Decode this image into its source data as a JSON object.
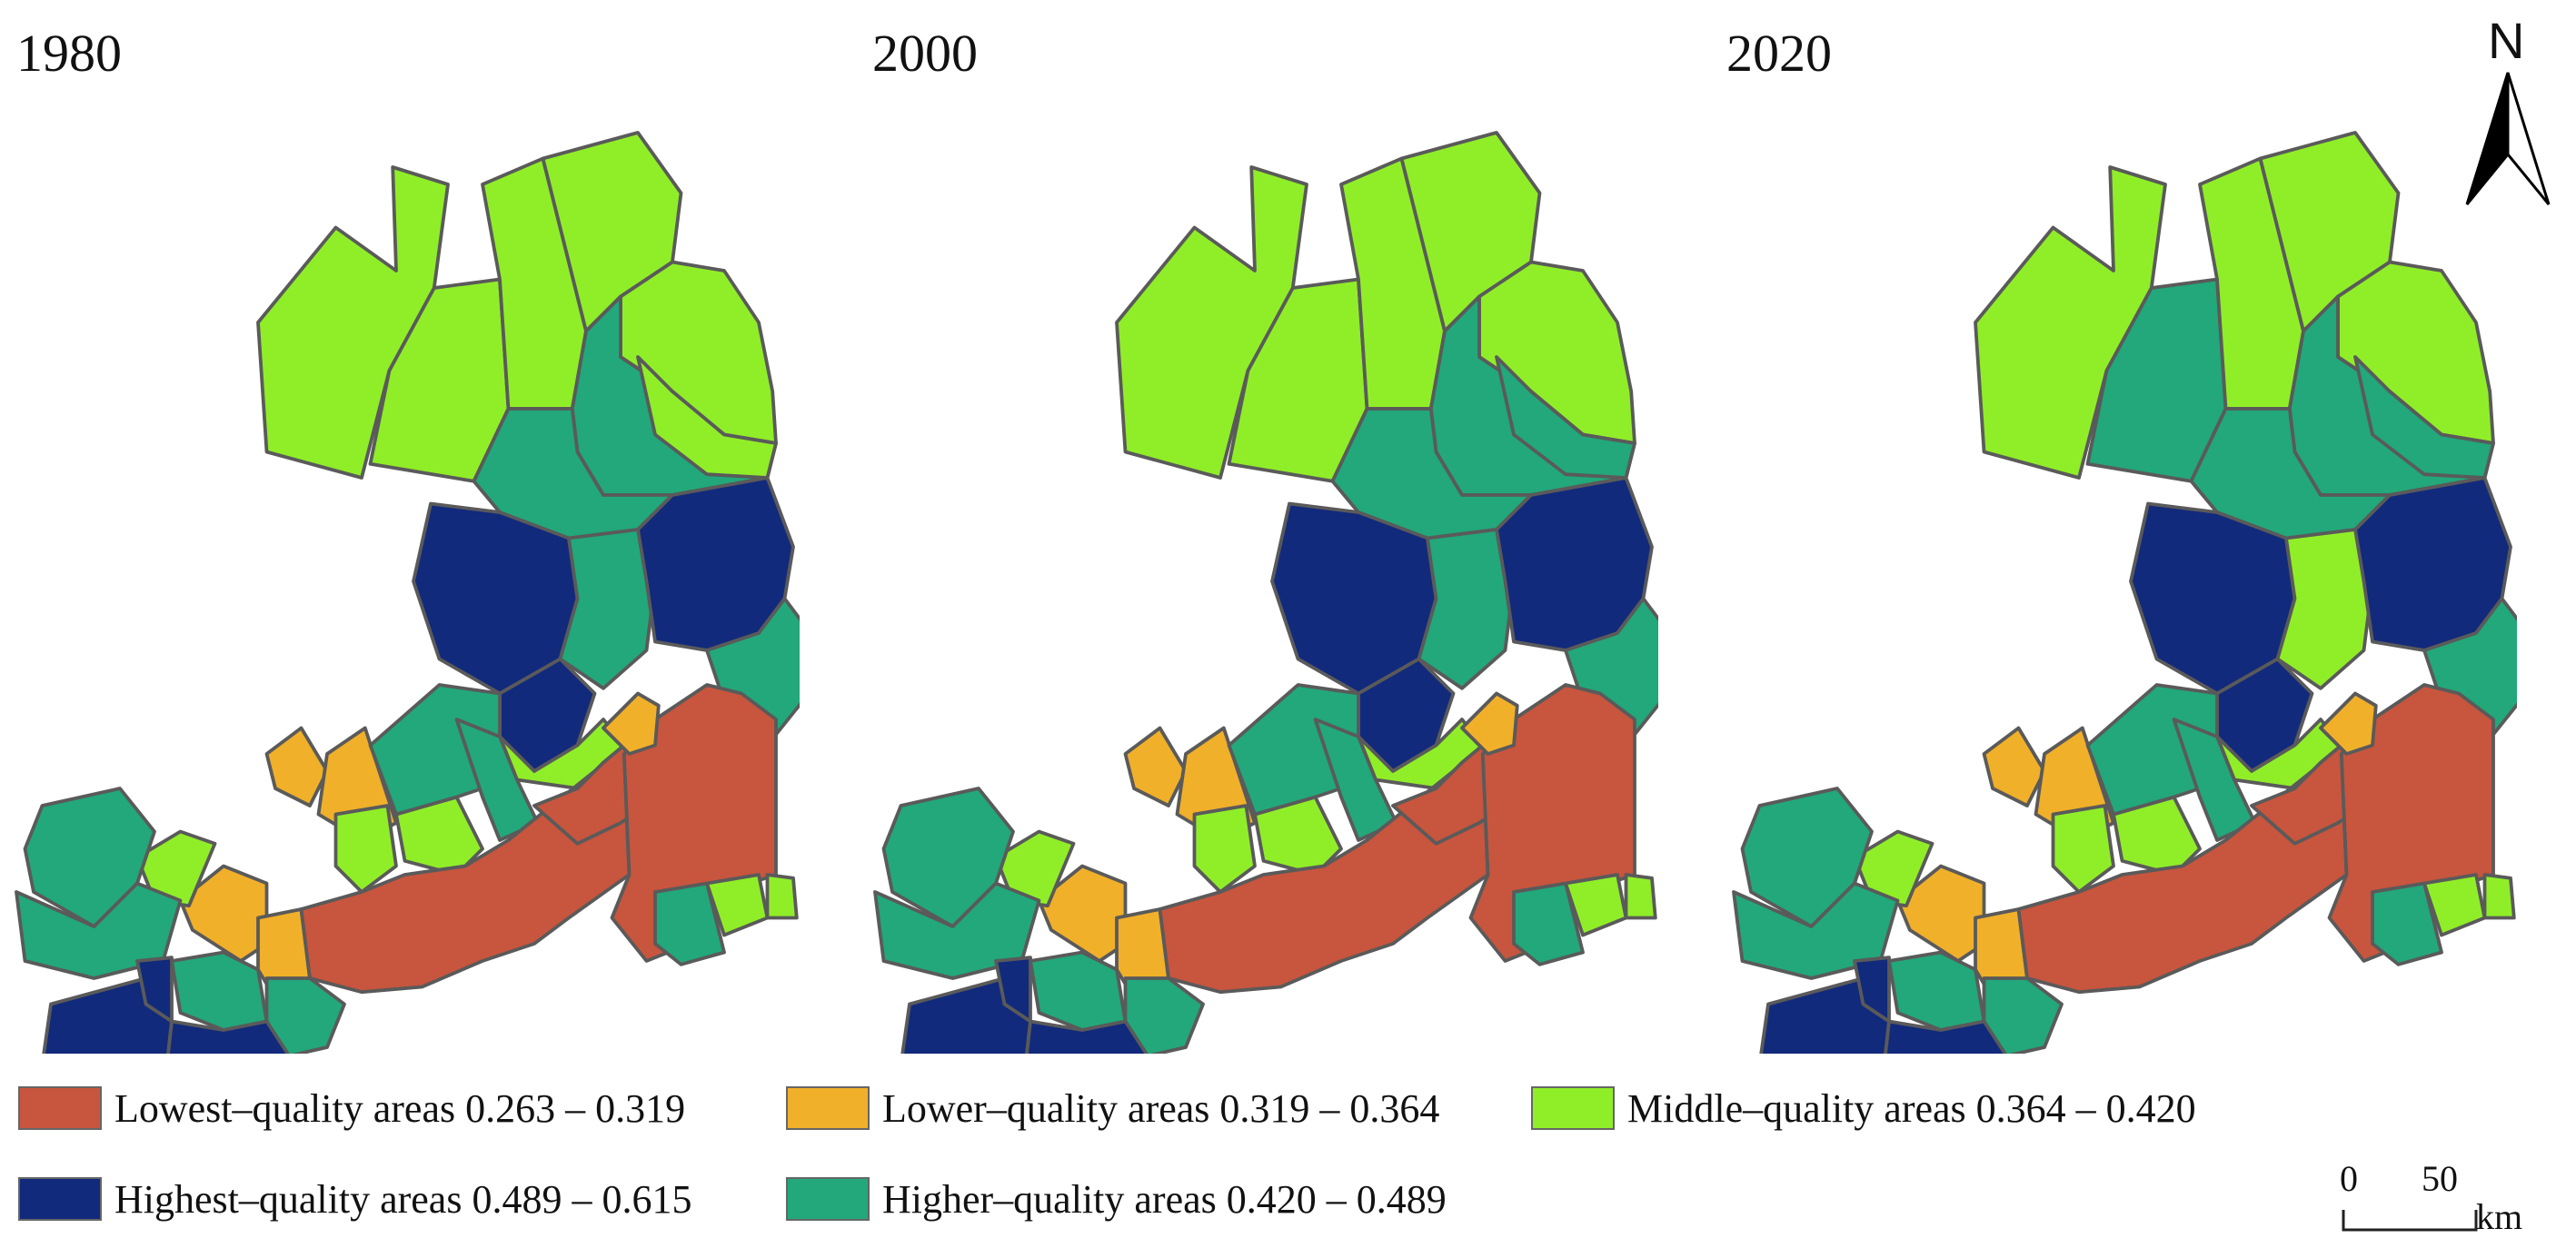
{
  "years": [
    "1980",
    "2000",
    "2020"
  ],
  "north_label": "N",
  "legend": [
    {
      "key": "lowest",
      "label": "Lowest–quality areas 0.263 – 0.319",
      "color": "#c8553d"
    },
    {
      "key": "lower",
      "label": "Lower–quality areas 0.319 – 0.364",
      "color": "#f1b02a"
    },
    {
      "key": "middle",
      "label": "Middle–quality areas 0.364 – 0.420",
      "color": "#90ee28"
    },
    {
      "key": "highest",
      "label": "Highest–quality areas 0.489 – 0.615",
      "color": "#122a7c"
    },
    {
      "key": "higher",
      "label": "Higher–quality areas 0.420 – 0.489",
      "color": "#22a87a"
    }
  ],
  "scale": {
    "zero": "0",
    "distance": "50",
    "unit": "km"
  },
  "maps": [
    {
      "year": "1980",
      "regions": {
        "north_far_west": "middle",
        "north_west": "middle",
        "north_center": "middle",
        "north_top": "middle",
        "north_east": "middle",
        "north_belt_center": "higher",
        "north_belt_east": "middle",
        "north_belt_south": "higher",
        "central_west": "highest",
        "central_mid": "highest",
        "central_column": "higher",
        "central_east": "highest",
        "central_far_east": "higher",
        "gap_strip": "middle",
        "mid_orange_1": "lower",
        "mid_orange_2": "lower",
        "mid_green_1": "middle",
        "mid_green_2": "middle",
        "mid_teal_1": "higher",
        "mid_teal_2": "higher",
        "sw_orange": "lower",
        "sw_orange_2": "lower",
        "sw_green": "middle",
        "west_teal": "higher",
        "west_teal_2": "higher",
        "south_teal": "higher",
        "south_teal_2": "higher",
        "south_blue_1": "highest",
        "south_blue_2": "highest",
        "south_blue_3": "highest",
        "red_belt": "lowest",
        "red_belt_2": "lowest",
        "east_red": "lowest",
        "east_orange": "lower",
        "se_teal": "higher",
        "se_green": "middle",
        "se_green_2": "middle"
      }
    },
    {
      "year": "2000",
      "regions": {
        "north_far_west": "middle",
        "north_west": "middle",
        "north_center": "middle",
        "north_top": "middle",
        "north_east": "middle",
        "north_belt_center": "higher",
        "north_belt_east": "higher",
        "north_belt_south": "higher",
        "central_west": "highest",
        "central_mid": "highest",
        "central_column": "higher",
        "central_east": "highest",
        "central_far_east": "higher",
        "gap_strip": "middle",
        "mid_orange_1": "lower",
        "mid_orange_2": "lower",
        "mid_green_1": "middle",
        "mid_green_2": "middle",
        "mid_teal_1": "higher",
        "mid_teal_2": "higher",
        "sw_orange": "lower",
        "sw_orange_2": "lower",
        "sw_green": "middle",
        "west_teal": "higher",
        "west_teal_2": "higher",
        "south_teal": "higher",
        "south_teal_2": "higher",
        "south_blue_1": "highest",
        "south_blue_2": "highest",
        "south_blue_3": "highest",
        "red_belt": "lowest",
        "red_belt_2": "lowest",
        "east_red": "lowest",
        "east_orange": "lower",
        "se_teal": "higher",
        "se_green": "middle",
        "se_green_2": "middle"
      }
    },
    {
      "year": "2020",
      "regions": {
        "north_far_west": "middle",
        "north_west": "higher",
        "north_center": "middle",
        "north_top": "middle",
        "north_east": "middle",
        "north_belt_center": "higher",
        "north_belt_east": "higher",
        "north_belt_south": "higher",
        "central_west": "highest",
        "central_mid": "highest",
        "central_column": "middle",
        "central_east": "highest",
        "central_far_east": "higher",
        "gap_strip": "middle",
        "mid_orange_1": "lower",
        "mid_orange_2": "lower",
        "mid_green_1": "middle",
        "mid_green_2": "middle",
        "mid_teal_1": "higher",
        "mid_teal_2": "higher",
        "sw_orange": "lower",
        "sw_orange_2": "lower",
        "sw_green": "middle",
        "west_teal": "higher",
        "west_teal_2": "higher",
        "south_teal": "higher",
        "south_teal_2": "higher",
        "south_blue_1": "highest",
        "south_blue_2": "highest",
        "south_blue_3": "highest",
        "red_belt": "lowest",
        "red_belt_2": "lowest",
        "east_red": "lowest",
        "east_orange": "lower",
        "se_teal": "higher",
        "se_green": "middle",
        "se_green_2": "middle"
      }
    }
  ]
}
